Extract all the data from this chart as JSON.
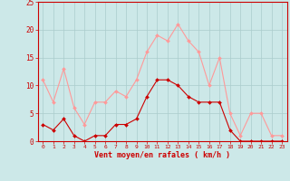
{
  "hours": [
    0,
    1,
    2,
    3,
    4,
    5,
    6,
    7,
    8,
    9,
    10,
    11,
    12,
    13,
    14,
    15,
    16,
    17,
    18,
    19,
    20,
    21,
    22,
    23
  ],
  "wind_mean": [
    3,
    2,
    4,
    1,
    0,
    1,
    1,
    3,
    3,
    4,
    8,
    11,
    11,
    10,
    8,
    7,
    7,
    7,
    2,
    0,
    0,
    0,
    0,
    0
  ],
  "wind_gust": [
    11,
    7,
    13,
    6,
    3,
    7,
    7,
    9,
    8,
    11,
    16,
    19,
    18,
    21,
    18,
    16,
    10,
    15,
    5,
    1,
    5,
    5,
    1,
    1
  ],
  "xlabel": "Vent moyen/en rafales ( km/h )",
  "ylim": [
    0,
    25
  ],
  "yticks": [
    0,
    5,
    10,
    15,
    20,
    25
  ],
  "bg_color": "#cce8e8",
  "grid_color": "#aacccc",
  "mean_color": "#cc0000",
  "gust_color": "#ff9999",
  "xlabel_color": "#cc0000",
  "tick_color": "#cc0000",
  "figsize": [
    3.2,
    2.0
  ],
  "dpi": 100
}
